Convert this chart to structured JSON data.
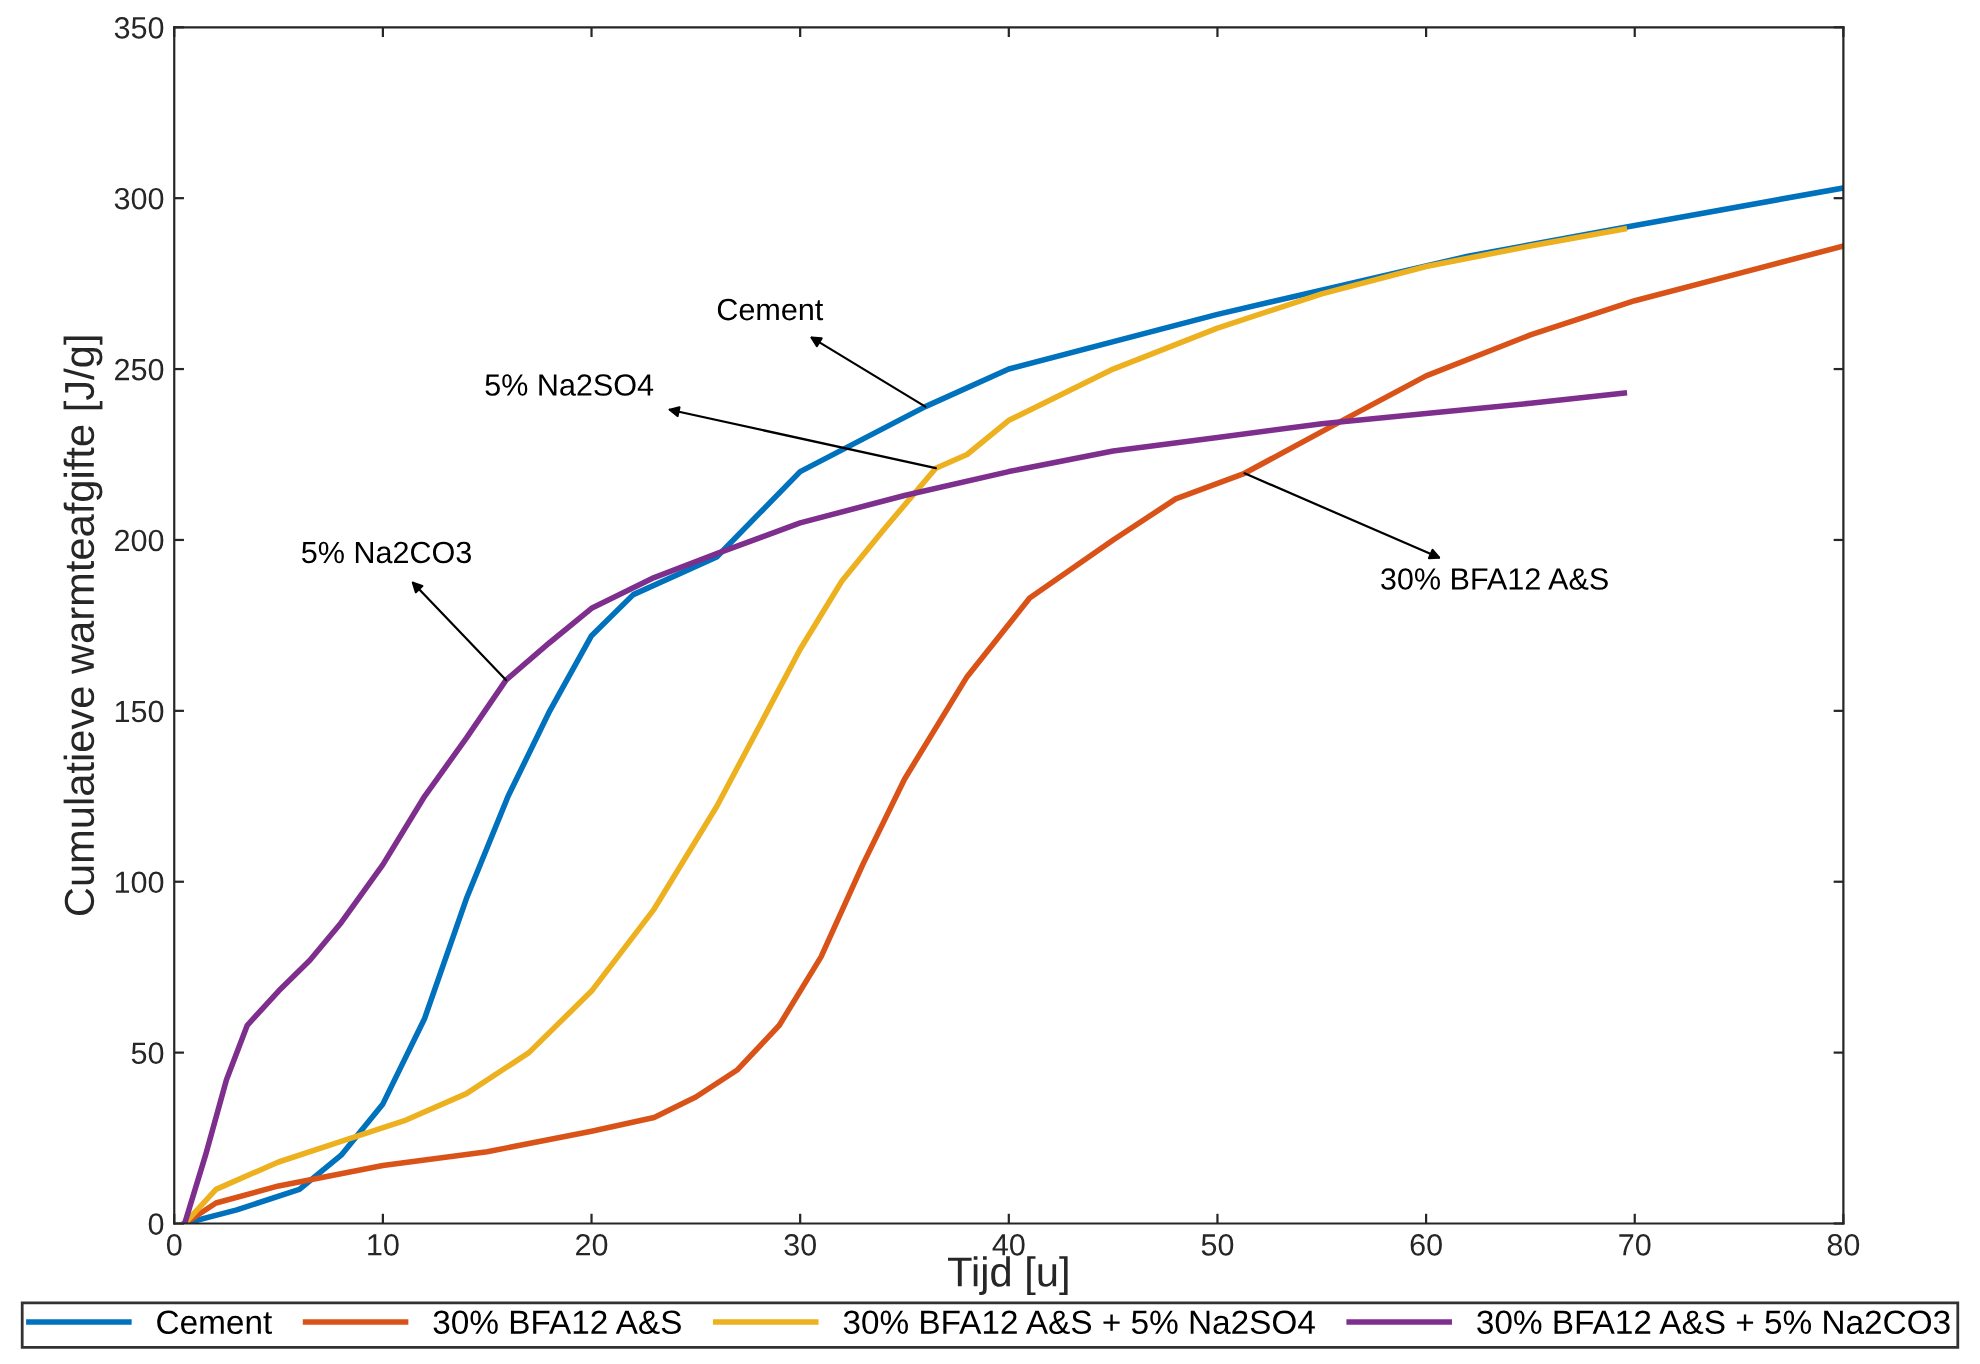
{
  "chart_data": {
    "type": "line",
    "xlabel": "Tijd [u]",
    "ylabel": "Cumulatieve warmteafgifte [J/g]",
    "xlim": [
      0,
      80
    ],
    "xticks": [
      0,
      10,
      20,
      30,
      40,
      50,
      60,
      70,
      80
    ],
    "ylim": [
      0,
      350
    ],
    "yticks": [
      0,
      50,
      100,
      150,
      200,
      250,
      300,
      350
    ],
    "grid": false,
    "legend": "bottom",
    "line_style": "solid",
    "marker": "none",
    "series": [
      {
        "name": "Cement",
        "color": "#0072bd",
        "x": [
          0.5,
          3,
          6,
          8,
          10,
          12,
          14,
          16,
          18,
          20,
          22,
          26,
          30,
          36,
          40,
          50,
          62,
          70,
          80
        ],
        "values": [
          0,
          4,
          10,
          20,
          35,
          60,
          95,
          125,
          150,
          172,
          184,
          195,
          220,
          239,
          250,
          266,
          283,
          292,
          303
        ]
      },
      {
        "name": "30% BFA12 A&S",
        "color": "#d95319",
        "x": [
          0.5,
          2,
          5,
          10,
          15,
          20,
          23,
          25,
          27,
          29,
          31,
          33,
          35,
          38,
          41,
          45,
          48,
          51.3,
          56,
          60,
          65,
          70,
          75,
          80
        ],
        "values": [
          0,
          6,
          11,
          17,
          21,
          27,
          31,
          37,
          45,
          58,
          78,
          105,
          130,
          160,
          183,
          200,
          212,
          219.5,
          235,
          248,
          260,
          270,
          278,
          286
        ]
      },
      {
        "name": "30% BFA12 A&S + 5% Na2SO4",
        "color": "#edb120",
        "x": [
          0.5,
          2,
          5,
          8,
          11,
          14,
          17,
          20,
          23,
          26,
          28,
          30,
          32,
          34,
          36.5,
          38,
          40,
          45,
          50,
          55,
          60,
          65,
          69.5
        ],
        "values": [
          0,
          10,
          18,
          24,
          30,
          38,
          50,
          68,
          92,
          122,
          145,
          168,
          188,
          203,
          221,
          225,
          235,
          250,
          262,
          272,
          280,
          286,
          291
        ]
      },
      {
        "name": "30% BFA12 A&S + 5% Na2CO3",
        "color": "#7e2f8e",
        "x": [
          0.5,
          1.5,
          2.5,
          3.5,
          5,
          6.5,
          8,
          10,
          12,
          14,
          15.9,
          18,
          20,
          23,
          26,
          30,
          35,
          40,
          45,
          50,
          55,
          60,
          65,
          69.5
        ],
        "values": [
          0,
          20,
          42,
          58,
          68,
          77,
          88,
          105,
          125,
          142,
          159,
          170,
          180,
          189,
          196,
          205,
          213,
          220,
          226,
          230,
          234,
          237,
          240,
          243
        ]
      }
    ],
    "annotations": [
      {
        "text": "Cement",
        "x": 36,
        "y": 239
      },
      {
        "text": "5% Na2SO4",
        "x": 36.5,
        "y": 221
      },
      {
        "text": "30% BFA12 A&S",
        "x": 51.3,
        "y": 219.5
      },
      {
        "text": "5% Na2CO3",
        "x": 15.9,
        "y": 159
      }
    ]
  }
}
